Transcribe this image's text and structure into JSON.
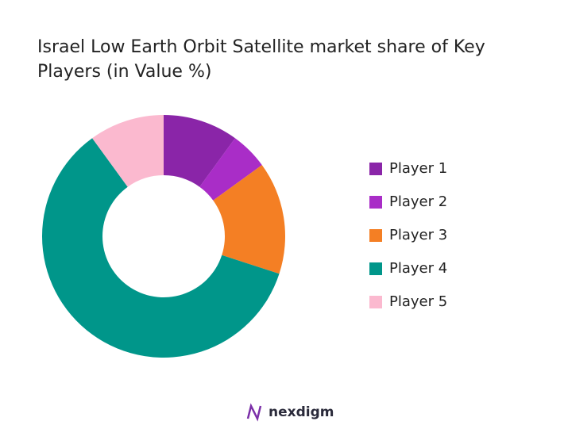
{
  "chart_data": {
    "type": "donut",
    "title": "Israel Low Earth Orbit Satellite market share of Key Players (in Value %)",
    "categories": [
      "Player 1",
      "Player 2",
      "Player 3",
      "Player 4",
      "Player 5"
    ],
    "values": [
      10,
      5,
      15,
      60,
      10
    ],
    "colors": [
      "#8a25a8",
      "#a92dc7",
      "#f47f24",
      "#00968a",
      "#fbb9cf"
    ]
  },
  "logo": "nexdigm"
}
